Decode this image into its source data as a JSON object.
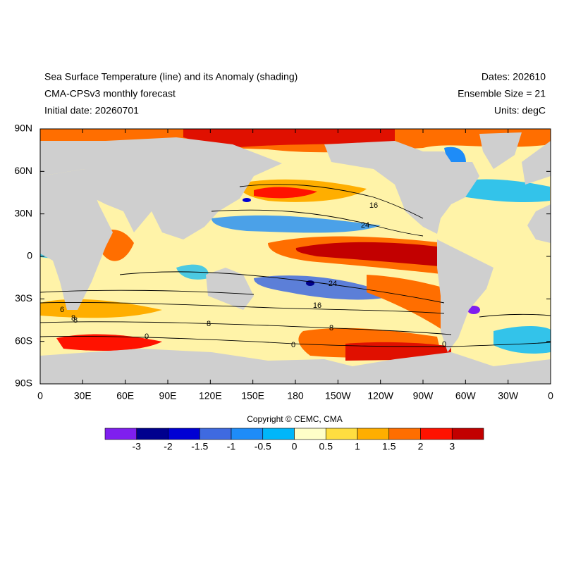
{
  "header": {
    "title_left": [
      "Sea Surface Temperature (line) and its Anomaly (shading)",
      "CMA-CPSv3 monthly forecast",
      "Initial date: 20260701"
    ],
    "title_right": [
      "Dates: 202610",
      "Ensemble Size = 21",
      "Units: degC"
    ]
  },
  "map": {
    "lat_labels": [
      "90N",
      "60N",
      "30N",
      "0",
      "30S",
      "60S",
      "90S"
    ],
    "lon_labels": [
      "0",
      "30E",
      "60E",
      "90E",
      "120E",
      "150E",
      "180",
      "150W",
      "120W",
      "90W",
      "60W",
      "30W",
      "0"
    ],
    "contour_labels": [
      "16",
      "24",
      "24",
      "16",
      "8",
      "8",
      "0",
      "0",
      "6",
      "8",
      "8",
      "0"
    ]
  },
  "copyright": "Copyright © CEMC, CMA",
  "colorbar": {
    "levels": [
      -3,
      -2,
      -1.5,
      -1,
      -0.5,
      0,
      0.5,
      1,
      1.5,
      2,
      3
    ],
    "colors": [
      "#7f1fef",
      "#00008e",
      "#0000d4",
      "#3f6ae0",
      "#1e8cf8",
      "#00b6fa",
      "#ffffc8",
      "#ffde40",
      "#ffae00",
      "#ff6e00",
      "#ff1200",
      "#c20000"
    ]
  }
}
